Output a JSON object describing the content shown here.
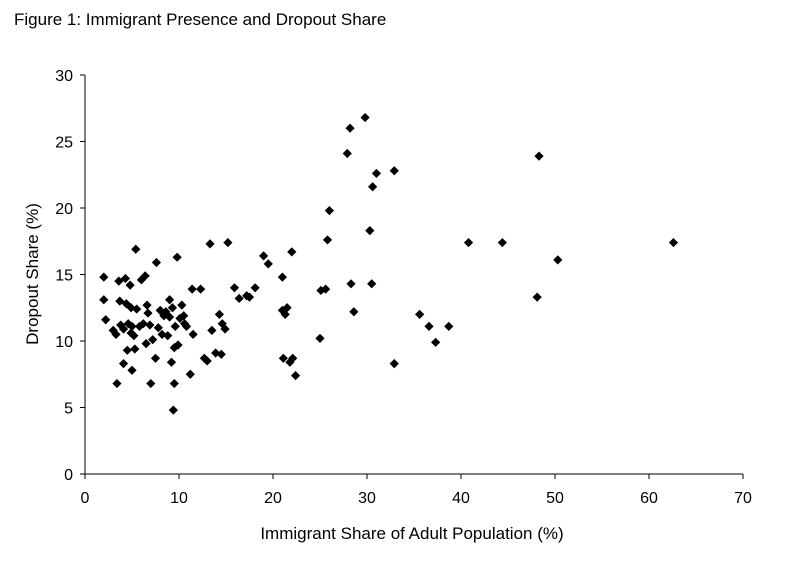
{
  "figure": {
    "title": "Figure 1: Immigrant Presence and Dropout Share"
  },
  "chart_data": {
    "type": "scatter",
    "title": "Figure 1: Immigrant Presence and Dropout Share",
    "xlabel": "Immigrant Share of Adult Population (%)",
    "ylabel": "Dropout Share (%)",
    "xlim": [
      0,
      70
    ],
    "ylim": [
      0,
      30
    ],
    "xticks": [
      0,
      10,
      20,
      30,
      40,
      50,
      60,
      70
    ],
    "yticks": [
      0,
      5,
      10,
      15,
      20,
      25,
      30
    ],
    "grid": false,
    "legend": "none",
    "marker": "diamond",
    "marker_color": "#000000",
    "points": [
      [
        2.0,
        14.8
      ],
      [
        2.0,
        13.1
      ],
      [
        2.2,
        11.6
      ],
      [
        3.0,
        10.8
      ],
      [
        3.3,
        10.5
      ],
      [
        3.4,
        6.8
      ],
      [
        3.6,
        14.5
      ],
      [
        3.7,
        13.0
      ],
      [
        3.8,
        11.2
      ],
      [
        4.1,
        8.3
      ],
      [
        4.1,
        10.9
      ],
      [
        4.3,
        14.7
      ],
      [
        4.4,
        12.8
      ],
      [
        4.5,
        9.3
      ],
      [
        4.6,
        11.3
      ],
      [
        4.8,
        14.2
      ],
      [
        4.9,
        12.5
      ],
      [
        4.9,
        10.6
      ],
      [
        5.0,
        7.8
      ],
      [
        5.0,
        11.1
      ],
      [
        5.2,
        10.4
      ],
      [
        5.3,
        9.4
      ],
      [
        5.4,
        16.9
      ],
      [
        5.5,
        12.4
      ],
      [
        5.8,
        11.1
      ],
      [
        6.0,
        14.6
      ],
      [
        6.2,
        11.3
      ],
      [
        6.4,
        14.9
      ],
      [
        6.5,
        9.8
      ],
      [
        6.6,
        12.7
      ],
      [
        6.7,
        12.1
      ],
      [
        6.9,
        11.2
      ],
      [
        7.0,
        6.8
      ],
      [
        7.2,
        10.1
      ],
      [
        7.5,
        8.7
      ],
      [
        7.6,
        15.9
      ],
      [
        7.8,
        11.0
      ],
      [
        8.0,
        12.3
      ],
      [
        8.2,
        10.5
      ],
      [
        8.4,
        11.9
      ],
      [
        8.6,
        12.2
      ],
      [
        8.8,
        10.4
      ],
      [
        9.0,
        11.8
      ],
      [
        9.0,
        13.1
      ],
      [
        9.2,
        8.4
      ],
      [
        9.3,
        12.5
      ],
      [
        9.4,
        4.8
      ],
      [
        9.5,
        6.8
      ],
      [
        9.5,
        9.5
      ],
      [
        9.6,
        11.1
      ],
      [
        9.8,
        16.3
      ],
      [
        9.9,
        9.7
      ],
      [
        10.1,
        11.7
      ],
      [
        10.3,
        12.7
      ],
      [
        10.5,
        11.9
      ],
      [
        10.6,
        11.3
      ],
      [
        10.8,
        11.1
      ],
      [
        11.2,
        7.5
      ],
      [
        11.4,
        13.9
      ],
      [
        11.5,
        10.5
      ],
      [
        12.3,
        13.9
      ],
      [
        12.7,
        8.7
      ],
      [
        13.0,
        8.5
      ],
      [
        13.3,
        17.3
      ],
      [
        13.5,
        10.8
      ],
      [
        13.9,
        9.1
      ],
      [
        14.3,
        12.0
      ],
      [
        14.5,
        9.0
      ],
      [
        14.6,
        11.3
      ],
      [
        14.9,
        10.9
      ],
      [
        15.2,
        17.4
      ],
      [
        15.9,
        14.0
      ],
      [
        16.4,
        13.2
      ],
      [
        17.2,
        13.4
      ],
      [
        17.5,
        13.3
      ],
      [
        18.1,
        14.0
      ],
      [
        19.0,
        16.4
      ],
      [
        19.5,
        15.8
      ],
      [
        21.0,
        14.8
      ],
      [
        21.0,
        12.3
      ],
      [
        21.1,
        8.7
      ],
      [
        21.3,
        12.0
      ],
      [
        21.5,
        12.5
      ],
      [
        21.8,
        8.4
      ],
      [
        22.0,
        16.7
      ],
      [
        22.1,
        8.7
      ],
      [
        22.4,
        7.4
      ],
      [
        25.0,
        10.2
      ],
      [
        25.1,
        13.8
      ],
      [
        25.6,
        13.9
      ],
      [
        25.8,
        17.6
      ],
      [
        26.0,
        19.8
      ],
      [
        27.9,
        24.1
      ],
      [
        28.2,
        26.0
      ],
      [
        28.3,
        14.3
      ],
      [
        28.6,
        12.2
      ],
      [
        29.8,
        26.8
      ],
      [
        30.3,
        18.3
      ],
      [
        30.5,
        14.3
      ],
      [
        30.6,
        21.6
      ],
      [
        31.0,
        22.6
      ],
      [
        32.9,
        22.8
      ],
      [
        32.9,
        8.3
      ],
      [
        35.6,
        12.0
      ],
      [
        36.6,
        11.1
      ],
      [
        37.3,
        9.9
      ],
      [
        38.7,
        11.1
      ],
      [
        40.8,
        17.4
      ],
      [
        44.4,
        17.4
      ],
      [
        48.1,
        13.3
      ],
      [
        48.3,
        23.9
      ],
      [
        50.3,
        16.1
      ],
      [
        62.6,
        17.4
      ]
    ]
  }
}
